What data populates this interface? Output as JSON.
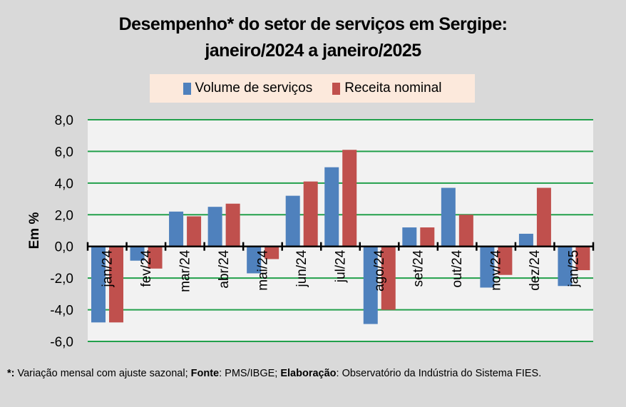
{
  "chart_data": {
    "type": "bar",
    "title": "Desempenho* do setor de serviços em Sergipe:",
    "subtitle": "janeiro/2024 a janeiro/2025",
    "xlabel": "",
    "ylabel": "Em %",
    "ylim": [
      -6,
      8
    ],
    "yticks": [
      -6,
      -4,
      -2,
      0,
      2,
      4,
      6,
      8
    ],
    "ytick_labels": [
      "-6,0",
      "-4,0",
      "-2,0",
      "0,0",
      "2,0",
      "4,0",
      "6,0",
      "8,0"
    ],
    "grid": true,
    "legend_position": "top",
    "categories": [
      "jan/24",
      "fev/24",
      "mar/24",
      "abr/24",
      "mai/24",
      "jun/24",
      "jul/24",
      "ago/24",
      "set/24",
      "out/24",
      "nov/24",
      "dez/24",
      "jan/25"
    ],
    "series": [
      {
        "name": "Volume de serviços",
        "color": "#4f81bd",
        "values": [
          -4.8,
          -0.9,
          2.2,
          2.5,
          -1.7,
          3.2,
          5.0,
          -4.9,
          1.2,
          3.7,
          -2.6,
          0.8,
          -2.5
        ]
      },
      {
        "name": "Receita nominal",
        "color": "#c0504d",
        "values": [
          -4.8,
          -1.4,
          1.9,
          2.7,
          -0.8,
          4.1,
          6.1,
          -4.0,
          1.2,
          2.0,
          -1.8,
          3.7,
          -1.5
        ]
      }
    ]
  },
  "footnote": {
    "star_label": "*:",
    "star_text": " Variação mensal com ajuste sazonal; ",
    "fonte_label": "Fonte",
    "fonte_text": ": PMS/IBGE; ",
    "elab_label": "Elaboração",
    "elab_text": ": Observatório da Indústria do Sistema FIES."
  },
  "colors": {
    "grid": "#22a04b",
    "plot_bg": "#f2f2f2",
    "background": "#d9d9d9",
    "legend_bg": "#fce9dc"
  }
}
